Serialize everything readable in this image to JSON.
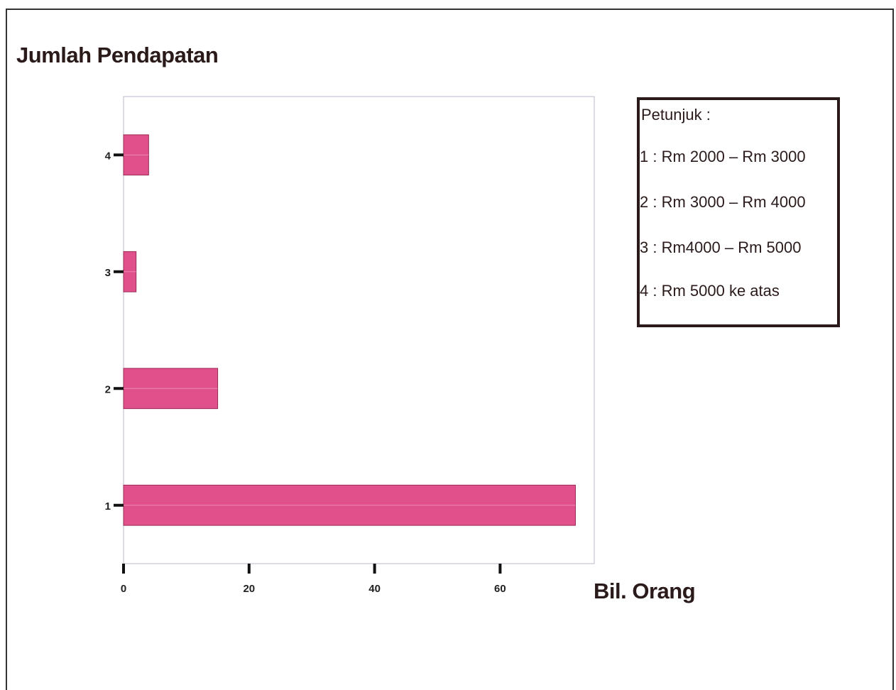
{
  "chart_data": {
    "type": "bar",
    "orientation": "horizontal",
    "title": "Jumlah Pendapatan",
    "xlabel": "Bil. Orang",
    "ylabel": "",
    "categories": [
      "1",
      "2",
      "3",
      "4"
    ],
    "values": [
      72,
      15,
      2,
      4
    ],
    "xlim": [
      0,
      75
    ],
    "xticks": [
      "0",
      "20",
      "40",
      "60"
    ],
    "bar_color": "#e0508a",
    "grid": false,
    "legend_placement": "right",
    "legend": {
      "title": "Petunjuk :",
      "items": [
        "1 : Rm 2000 – Rm 3000",
        "2 : Rm 3000 – Rm 4000",
        "3 : Rm4000 – Rm 5000",
        "4 : Rm 5000 ke atas"
      ]
    }
  }
}
